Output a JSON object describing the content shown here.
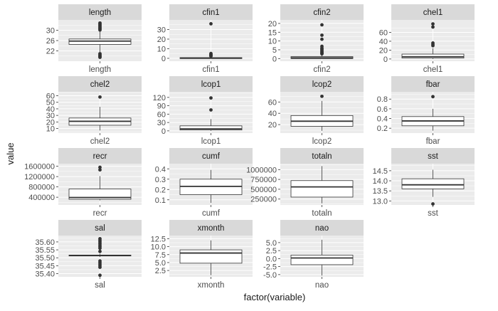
{
  "chart_data": {
    "type": "boxplot",
    "xlabel": "factor(variable)",
    "ylabel": "value",
    "layout": "facet_wrap 4 columns, free scales",
    "colors": {
      "strip_bg": "#D9D9D9",
      "panel_bg": "#EBEBEB",
      "grid": "#FFFFFF",
      "box_line": "#333333",
      "box_fill": "#FFFFFF",
      "outlier": "#333333",
      "axis_text": "#4D4D4D"
    },
    "panels": [
      {
        "label": "length",
        "category": "length",
        "ylim": [
          18,
          34
        ],
        "ticks": [
          22,
          26,
          30
        ],
        "tick_labels": [
          "22",
          "26",
          "30"
        ],
        "box": {
          "q1": 24.5,
          "median": 25.8,
          "q3": 26.6,
          "lo": 21.6,
          "hi": 29.6
        },
        "outliers": [
          30.1,
          30.5,
          30.8,
          31.2,
          31.6,
          32.0,
          32.4,
          32.8,
          20.9,
          20.5,
          20.1,
          19.8,
          19.5
        ]
      },
      {
        "label": "cfin1",
        "category": "cfin1",
        "ylim": [
          -3,
          40
        ],
        "ticks": [
          0,
          10,
          20,
          30
        ],
        "tick_labels": [
          "0",
          "10",
          "20",
          "30"
        ],
        "box": {
          "q1": 0,
          "median": 0.2,
          "q3": 0.7,
          "lo": 0,
          "hi": 1.5
        },
        "outliers": [
          36,
          5,
          4,
          3.4,
          2.8,
          2.2
        ]
      },
      {
        "label": "cfin2",
        "category": "cfin2",
        "ylim": [
          -1.5,
          22
        ],
        "ticks": [
          0,
          5,
          10,
          15,
          20
        ],
        "tick_labels": [
          "0",
          "5",
          "10",
          "15",
          "20"
        ],
        "box": {
          "q1": 0,
          "median": 0.4,
          "q3": 1.1,
          "lo": 0,
          "hi": 2.5
        },
        "outliers": [
          19.2,
          13.3,
          11,
          7,
          6,
          5.4,
          4.8,
          4.1,
          3.5,
          3,
          2.7
        ]
      },
      {
        "label": "chel1",
        "category": "chel1",
        "ylim": [
          -5,
          88
        ],
        "ticks": [
          0,
          20,
          40,
          60
        ],
        "tick_labels": [
          "0",
          "20",
          "40",
          "60"
        ],
        "box": {
          "q1": 2,
          "median": 5,
          "q3": 11,
          "lo": 0,
          "hi": 24
        },
        "outliers": [
          79,
          72,
          36,
          33,
          30
        ]
      },
      {
        "label": "chel2",
        "category": "chel2",
        "ylim": [
          3,
          66
        ],
        "ticks": [
          10,
          20,
          30,
          40,
          50,
          60
        ],
        "tick_labels": [
          "10",
          "20",
          "30",
          "40",
          "50",
          "60"
        ],
        "box": {
          "q1": 15,
          "median": 21,
          "q3": 26,
          "lo": 7,
          "hi": 43
        },
        "outliers": [
          58
        ]
      },
      {
        "label": "lcop1",
        "category": "lcop1",
        "ylim": [
          -8,
          140
        ],
        "ticks": [
          0,
          30,
          60,
          90,
          120
        ],
        "tick_labels": [
          "0",
          "30",
          "60",
          "90",
          "120"
        ],
        "box": {
          "q1": 3,
          "median": 7,
          "q3": 18,
          "lo": 0,
          "hi": 42
        },
        "outliers": [
          118,
          75
        ]
      },
      {
        "label": "lcop2",
        "category": "lcop2",
        "ylim": [
          5,
          78
        ],
        "ticks": [
          20,
          40,
          60
        ],
        "tick_labels": [
          "20",
          "40",
          "60"
        ],
        "box": {
          "q1": 17,
          "median": 26,
          "q3": 36,
          "lo": 9,
          "hi": 62
        },
        "outliers": [
          70
        ]
      },
      {
        "label": "fbar",
        "category": "fbar",
        "ylim": [
          0.1,
          0.95
        ],
        "ticks": [
          0.2,
          0.4,
          0.6,
          0.8
        ],
        "tick_labels": [
          "0.2",
          "0.4",
          "0.6",
          "0.8"
        ],
        "box": {
          "q1": 0.25,
          "median": 0.35,
          "q3": 0.44,
          "lo": 0.15,
          "hi": 0.6
        },
        "outliers": [
          0.85
        ]
      },
      {
        "label": "recr",
        "category": "recr",
        "ylim": [
          100000,
          1700000
        ],
        "ticks": [
          400000,
          800000,
          1200000,
          1600000
        ],
        "tick_labels": [
          "400000",
          "800000",
          "1200000",
          "1600000"
        ],
        "box": {
          "q1": 320000,
          "median": 390000,
          "q3": 720000,
          "lo": 280000,
          "hi": 1220000
        },
        "outliers": [
          1560000,
          1460000
        ]
      },
      {
        "label": "cumf",
        "category": "cumf",
        "ylim": [
          0.05,
          0.45
        ],
        "ticks": [
          0.1,
          0.2,
          0.3,
          0.4
        ],
        "tick_labels": [
          "0.1",
          "0.2",
          "0.3",
          "0.4"
        ],
        "box": {
          "q1": 0.15,
          "median": 0.23,
          "q3": 0.3,
          "lo": 0.07,
          "hi": 0.39
        },
        "outliers": []
      },
      {
        "label": "totaln",
        "category": "totaln",
        "ylim": [
          100000,
          1150000
        ],
        "ticks": [
          250000,
          500000,
          750000,
          1000000
        ],
        "tick_labels": [
          "250000",
          "500000",
          "750000",
          "1000000"
        ],
        "box": {
          "q1": 300000,
          "median": 560000,
          "q3": 720000,
          "lo": 140000,
          "hi": 1090000
        },
        "outliers": []
      },
      {
        "label": "sst",
        "category": "sst",
        "ylim": [
          12.8,
          14.85
        ],
        "ticks": [
          13.0,
          13.5,
          14.0,
          14.5
        ],
        "tick_labels": [
          "13.0",
          "13.5",
          "14.0",
          "14.5"
        ],
        "box": {
          "q1": 13.6,
          "median": 13.8,
          "q3": 14.1,
          "lo": 13.2,
          "hi": 14.55
        },
        "outliers": [
          12.85
        ]
      },
      {
        "label": "sal",
        "category": "sal",
        "ylim": [
          35.38,
          35.64
        ],
        "ticks": [
          35.4,
          35.45,
          35.5,
          35.55,
          35.6
        ],
        "tick_labels": [
          "35.40",
          "35.45",
          "35.50",
          "35.55",
          "35.60"
        ],
        "box": {
          "q1": 35.513,
          "median": 35.515,
          "q3": 35.517,
          "lo": 35.505,
          "hi": 35.525
        },
        "outliers": [
          35.62,
          35.61,
          35.6,
          35.59,
          35.58,
          35.57,
          35.56,
          35.54,
          35.48,
          35.47,
          35.46,
          35.45,
          35.44,
          35.39
        ]
      },
      {
        "label": "xmonth",
        "category": "xmonth",
        "ylim": [
          0.5,
          13.5
        ],
        "ticks": [
          2.5,
          5.0,
          7.5,
          10.0,
          12.5
        ],
        "tick_labels": [
          "2.5",
          "5.0",
          "7.5",
          "10.0",
          "12.5"
        ],
        "box": {
          "q1": 4.8,
          "median": 8,
          "q3": 9,
          "lo": 1,
          "hi": 12
        },
        "outliers": []
      },
      {
        "label": "nao",
        "category": "nao",
        "ylim": [
          -5.7,
          7.2
        ],
        "ticks": [
          -5.0,
          -2.5,
          0.0,
          2.5,
          5.0
        ],
        "tick_labels": [
          "-5.0",
          "-2.5",
          "0.0",
          "2.5",
          "5.0"
        ],
        "box": {
          "q1": -1.9,
          "median": 0.2,
          "q3": 1.1,
          "lo": -5.3,
          "hi": 5.9
        },
        "outliers": []
      }
    ]
  }
}
